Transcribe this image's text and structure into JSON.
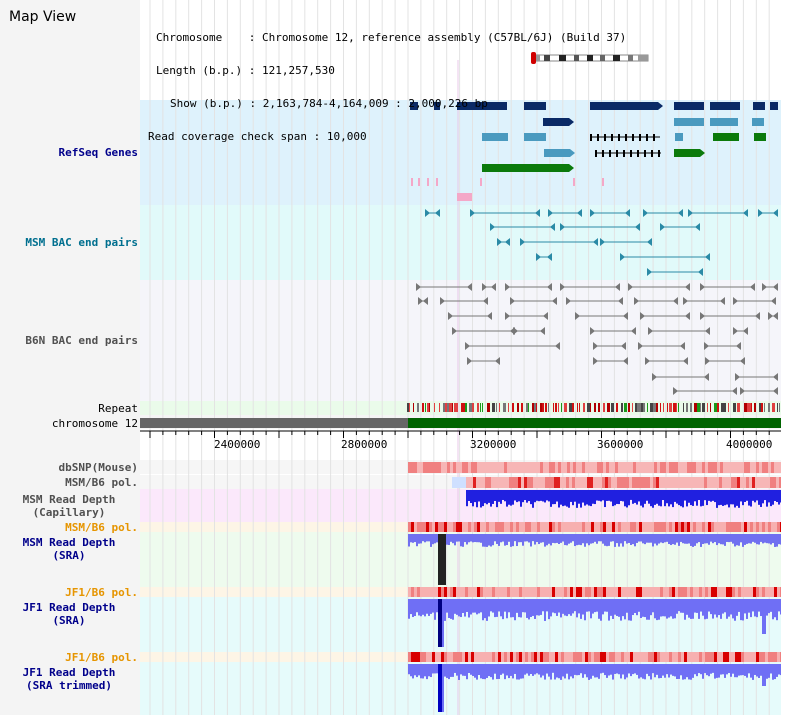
{
  "page_title": "Map View",
  "info": {
    "chromosome_key": "Chromosome",
    "chromosome_value": "Chromosome 12, reference assembly (C57BL/6J) (Build 37)",
    "length_key": "Length (b.p.)",
    "length_value": "121,257,530",
    "show_key": "Show (b.p.)",
    "show_value": "2,163,784-4,164,009 : 2,000,226 bp",
    "coverage_key": "Read coverage check span",
    "coverage_value": "10,000"
  },
  "tracks": {
    "refseq": "RefSeq Genes",
    "msm_bac": "MSM BAC end pairs",
    "b6n_bac": "B6N BAC end pairs",
    "repeat": "Repeat",
    "chromosome": "chromosome 12",
    "dbsnp": "dbSNP(Mouse)",
    "msm_b6_pol_1": "MSM/B6 pol.",
    "msm_read_depth_cap_1": "MSM Read Depth",
    "msm_read_depth_cap_2": "(Capillary)",
    "msm_b6_pol_2": "MSM/B6 pol.",
    "msm_read_depth_sra_1": "MSM Read Depth",
    "msm_read_depth_sra_2": "(SRA)",
    "jf1_b6_pol_1": "JF1/B6 pol.",
    "jf1_read_depth_sra_1": "JF1 Read Depth",
    "jf1_read_depth_sra_2": "(SRA)",
    "jf1_b6_pol_2": "JF1/B6 pol.",
    "jf1_read_depth_trim_1": "JF1 Read Depth",
    "jf1_read_depth_trim_2": "(SRA trimmed)"
  },
  "axis_ticks": [
    "2400000",
    "2800000",
    "3200000",
    "3600000",
    "4000000"
  ],
  "colors": {
    "refseq_band": "#def2fc",
    "msm_bac_band": "#e1fafa",
    "b6n_bac_band": "#f5f5fa",
    "label_navy": "#00008b",
    "label_teal": "#006f8f",
    "label_gray": "#505050",
    "label_orange": "#e69500",
    "chromosome_green": "#006400",
    "gene_dark": "#0a2a66",
    "gene_mid": "#4a9abf",
    "gene_green": "#0b7a0b",
    "gene_pink": "#f4a8c8"
  }
}
